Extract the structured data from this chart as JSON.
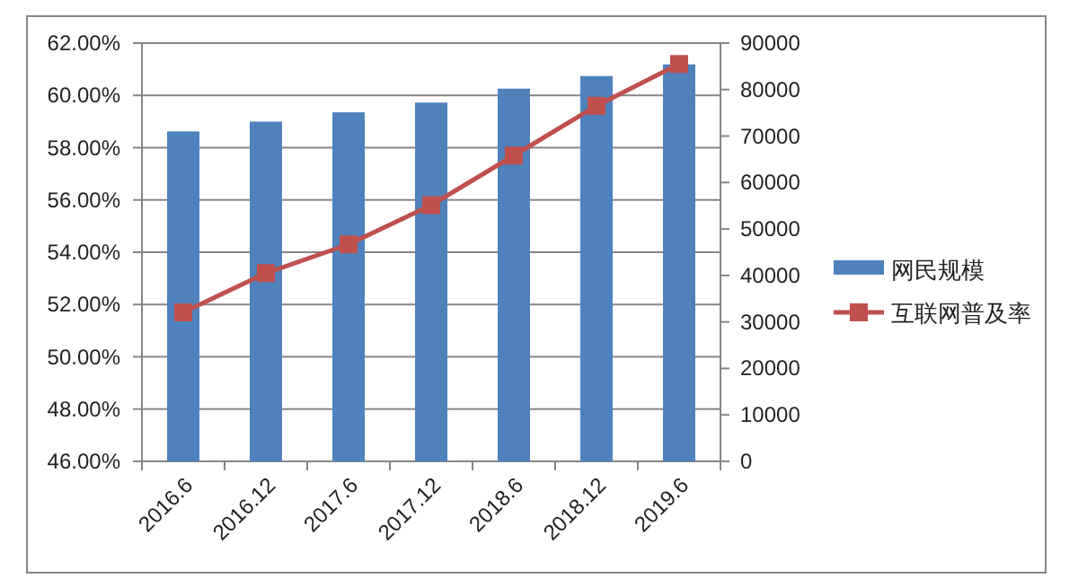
{
  "chart_data": {
    "type": "bar",
    "categories": [
      "2016.6",
      "2016.12",
      "2017.6",
      "2017.12",
      "2018.6",
      "2018.12",
      "2019.6"
    ],
    "series": [
      {
        "name": "网民规模",
        "axis": "y2",
        "color": "#4f81bd",
        "values": [
          71000,
          73100,
          75100,
          77200,
          80200,
          82900,
          85400
        ]
      },
      {
        "name": "互联网普及率",
        "type": "line",
        "axis": "y",
        "color": "#c0504d",
        "marker": "square",
        "values": [
          51.7,
          53.2,
          54.3,
          55.8,
          57.7,
          59.6,
          61.2
        ]
      }
    ],
    "ylim": [
      46,
      62
    ],
    "yticks": [
      {
        "value": 46,
        "label": "46.00%"
      },
      {
        "value": 48,
        "label": "48.00%"
      },
      {
        "value": 50,
        "label": "50.00%"
      },
      {
        "value": 52,
        "label": "52.00%"
      },
      {
        "value": 54,
        "label": "54.00%"
      },
      {
        "value": 56,
        "label": "56.00%"
      },
      {
        "value": 58,
        "label": "58.00%"
      },
      {
        "value": 60,
        "label": "60.00%"
      },
      {
        "value": 62,
        "label": "62.00%"
      }
    ],
    "y2lim": [
      0,
      90000
    ],
    "y2ticks": [
      0,
      10000,
      20000,
      30000,
      40000,
      50000,
      60000,
      70000,
      80000,
      90000
    ],
    "grid": "y",
    "legend": "right"
  }
}
